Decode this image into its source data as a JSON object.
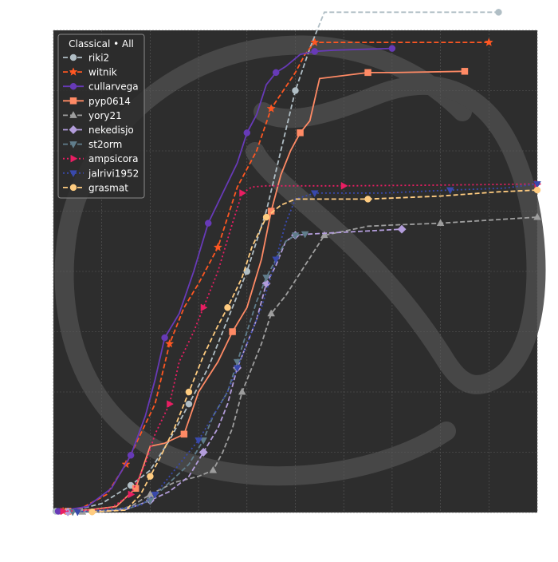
{
  "chart_data": {
    "type": "line",
    "title": "",
    "xlabel": "",
    "ylabel": "",
    "xlim": [
      0,
      10
    ],
    "ylim": [
      0,
      8
    ],
    "grid": true,
    "legend_title": "Classical • All",
    "legend_position": "top-left",
    "background": "#2d2d2d",
    "series": [
      {
        "name": "riki2",
        "color": "#b0bec5",
        "dash": "dashed",
        "marker": "circle",
        "points": [
          [
            0.05,
            0.02
          ],
          [
            0.5,
            0.05
          ],
          [
            1.0,
            0.15
          ],
          [
            1.6,
            0.45
          ],
          [
            2.0,
            0.7
          ],
          [
            2.4,
            1.2
          ],
          [
            2.8,
            1.8
          ],
          [
            3.2,
            2.4
          ],
          [
            3.6,
            3.2
          ],
          [
            4.0,
            4.0
          ],
          [
            4.4,
            5.0
          ],
          [
            4.7,
            6.0
          ],
          [
            5.0,
            7.0
          ],
          [
            5.3,
            7.7
          ],
          [
            5.6,
            8.3
          ],
          [
            9.2,
            8.3
          ]
        ]
      },
      {
        "name": "witnik",
        "color": "#ff5722",
        "dash": "dashed",
        "marker": "star",
        "points": [
          [
            0.2,
            0.02
          ],
          [
            0.6,
            0.08
          ],
          [
            1.1,
            0.3
          ],
          [
            1.5,
            0.8
          ],
          [
            1.8,
            1.3
          ],
          [
            2.1,
            1.8
          ],
          [
            2.4,
            2.8
          ],
          [
            2.7,
            3.4
          ],
          [
            3.0,
            3.8
          ],
          [
            3.4,
            4.4
          ],
          [
            3.8,
            5.4
          ],
          [
            4.2,
            6.0
          ],
          [
            4.5,
            6.7
          ],
          [
            5.0,
            7.3
          ],
          [
            5.2,
            7.6
          ],
          [
            5.4,
            7.8
          ],
          [
            9.0,
            7.8
          ]
        ]
      },
      {
        "name": "cullarvega",
        "color": "#673ab7",
        "dash": "solid",
        "marker": "circle",
        "points": [
          [
            0.1,
            0.02
          ],
          [
            0.7,
            0.1
          ],
          [
            1.2,
            0.4
          ],
          [
            1.6,
            0.95
          ],
          [
            1.9,
            1.6
          ],
          [
            2.1,
            2.2
          ],
          [
            2.3,
            2.9
          ],
          [
            2.6,
            3.3
          ],
          [
            2.9,
            4.0
          ],
          [
            3.2,
            4.8
          ],
          [
            3.5,
            5.3
          ],
          [
            3.8,
            5.8
          ],
          [
            4.0,
            6.3
          ],
          [
            4.2,
            6.6
          ],
          [
            4.4,
            7.1
          ],
          [
            4.6,
            7.3
          ],
          [
            4.8,
            7.4
          ],
          [
            5.1,
            7.6
          ],
          [
            5.4,
            7.65
          ],
          [
            5.8,
            7.67
          ],
          [
            7.0,
            7.7
          ]
        ]
      },
      {
        "name": "pyp0614",
        "color": "#ff8a65",
        "dash": "solid",
        "marker": "square",
        "points": [
          [
            0.3,
            0.02
          ],
          [
            0.8,
            0.05
          ],
          [
            1.3,
            0.1
          ],
          [
            1.7,
            0.4
          ],
          [
            2.0,
            1.1
          ],
          [
            2.3,
            1.15
          ],
          [
            2.7,
            1.3
          ],
          [
            3.0,
            2.0
          ],
          [
            3.4,
            2.5
          ],
          [
            3.7,
            3.0
          ],
          [
            4.0,
            3.4
          ],
          [
            4.3,
            4.2
          ],
          [
            4.5,
            5.0
          ],
          [
            4.7,
            5.6
          ],
          [
            4.9,
            6.0
          ],
          [
            5.1,
            6.3
          ],
          [
            5.3,
            6.5
          ],
          [
            5.5,
            7.2
          ],
          [
            6.5,
            7.3
          ],
          [
            7.0,
            7.3
          ],
          [
            8.5,
            7.32
          ]
        ]
      },
      {
        "name": "yory21",
        "color": "#9e9e9e",
        "dash": "dashed",
        "marker": "triangle",
        "points": [
          [
            0.6,
            0.01
          ],
          [
            1.2,
            0.03
          ],
          [
            1.6,
            0.1
          ],
          [
            2.0,
            0.3
          ],
          [
            2.5,
            0.5
          ],
          [
            3.0,
            0.6
          ],
          [
            3.3,
            0.7
          ],
          [
            3.5,
            1.0
          ],
          [
            3.7,
            1.4
          ],
          [
            3.9,
            2.0
          ],
          [
            4.1,
            2.4
          ],
          [
            4.3,
            2.8
          ],
          [
            4.5,
            3.3
          ],
          [
            4.8,
            3.6
          ],
          [
            5.2,
            4.1
          ],
          [
            5.6,
            4.6
          ],
          [
            6.5,
            4.75
          ],
          [
            7.0,
            4.77
          ],
          [
            8.0,
            4.8
          ],
          [
            10.0,
            4.9
          ]
        ]
      },
      {
        "name": "nekedisjo",
        "color": "#b39ddb",
        "dash": "dashed",
        "marker": "diamond",
        "points": [
          [
            0.3,
            0.01
          ],
          [
            1.0,
            0.03
          ],
          [
            1.5,
            0.05
          ],
          [
            2.0,
            0.2
          ],
          [
            2.4,
            0.35
          ],
          [
            2.8,
            0.6
          ],
          [
            3.1,
            1.0
          ],
          [
            3.4,
            1.4
          ],
          [
            3.6,
            1.8
          ],
          [
            3.8,
            2.4
          ],
          [
            4.0,
            2.8
          ],
          [
            4.2,
            3.2
          ],
          [
            4.4,
            3.8
          ],
          [
            4.6,
            4.1
          ],
          [
            4.8,
            4.5
          ],
          [
            5.0,
            4.6
          ],
          [
            5.3,
            4.62
          ],
          [
            6.0,
            4.65
          ],
          [
            7.2,
            4.7
          ]
        ]
      },
      {
        "name": "st2orm",
        "color": "#607d8b",
        "dash": "dashed",
        "marker": "triangle-down",
        "points": [
          [
            0.4,
            0.01
          ],
          [
            1.0,
            0.03
          ],
          [
            1.6,
            0.08
          ],
          [
            2.0,
            0.2
          ],
          [
            2.4,
            0.5
          ],
          [
            2.8,
            0.8
          ],
          [
            3.1,
            1.2
          ],
          [
            3.3,
            1.6
          ],
          [
            3.6,
            2.0
          ],
          [
            3.8,
            2.5
          ],
          [
            4.0,
            3.0
          ],
          [
            4.2,
            3.5
          ],
          [
            4.4,
            3.9
          ],
          [
            4.6,
            4.2
          ],
          [
            4.8,
            4.5
          ],
          [
            5.0,
            4.6
          ],
          [
            5.2,
            4.62
          ]
        ]
      },
      {
        "name": "ampsicora",
        "color": "#e91e63",
        "dash": "dotted",
        "marker": "triangle-right",
        "points": [
          [
            0.2,
            0.02
          ],
          [
            0.8,
            0.04
          ],
          [
            1.2,
            0.08
          ],
          [
            1.6,
            0.3
          ],
          [
            1.9,
            0.8
          ],
          [
            2.1,
            1.3
          ],
          [
            2.4,
            1.8
          ],
          [
            2.6,
            2.5
          ],
          [
            2.9,
            3.0
          ],
          [
            3.1,
            3.4
          ],
          [
            3.4,
            4.0
          ],
          [
            3.7,
            4.8
          ],
          [
            3.9,
            5.3
          ],
          [
            4.1,
            5.4
          ],
          [
            4.4,
            5.42
          ],
          [
            6.0,
            5.42
          ],
          [
            7.8,
            5.43
          ],
          [
            10.0,
            5.45
          ]
        ]
      },
      {
        "name": "jalrivi1952",
        "color": "#3949ab",
        "dash": "dotted",
        "marker": "triangle-down",
        "points": [
          [
            0.5,
            0.01
          ],
          [
            1.3,
            0.05
          ],
          [
            1.8,
            0.12
          ],
          [
            2.1,
            0.3
          ],
          [
            2.4,
            0.6
          ],
          [
            2.7,
            0.9
          ],
          [
            3.0,
            1.2
          ],
          [
            3.3,
            1.6
          ],
          [
            3.6,
            2.0
          ],
          [
            3.8,
            2.4
          ],
          [
            4.0,
            2.8
          ],
          [
            4.3,
            3.4
          ],
          [
            4.6,
            4.2
          ],
          [
            4.8,
            4.8
          ],
          [
            5.0,
            5.2
          ],
          [
            5.4,
            5.3
          ],
          [
            6.0,
            5.3
          ],
          [
            6.8,
            5.3
          ],
          [
            8.2,
            5.35
          ],
          [
            9.3,
            5.38
          ],
          [
            10.0,
            5.45
          ]
        ]
      },
      {
        "name": "grasmat",
        "color": "#ffcc80",
        "dash": "dashed",
        "marker": "circle",
        "points": [
          [
            0.8,
            0.01
          ],
          [
            1.5,
            0.04
          ],
          [
            1.8,
            0.3
          ],
          [
            2.0,
            0.6
          ],
          [
            2.2,
            0.9
          ],
          [
            2.5,
            1.4
          ],
          [
            2.8,
            2.0
          ],
          [
            3.1,
            2.6
          ],
          [
            3.4,
            3.1
          ],
          [
            3.6,
            3.4
          ],
          [
            3.9,
            3.9
          ],
          [
            4.1,
            4.4
          ],
          [
            4.4,
            4.9
          ],
          [
            4.7,
            5.1
          ],
          [
            5.0,
            5.2
          ],
          [
            6.5,
            5.2
          ],
          [
            8.0,
            5.25
          ],
          [
            9.2,
            5.32
          ],
          [
            10.0,
            5.35
          ]
        ]
      }
    ]
  }
}
